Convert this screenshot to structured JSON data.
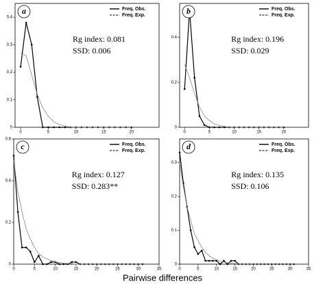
{
  "chart_data": [
    {
      "type": "line",
      "label": "a",
      "annotations": [
        "Rg index: 0.081",
        "SSD: 0.006"
      ],
      "legend": "upper right",
      "x": [
        0,
        1,
        2,
        3,
        4,
        5,
        6,
        7,
        8,
        9,
        10,
        11,
        12,
        13,
        14,
        15,
        16,
        17,
        18,
        19,
        20
      ],
      "xlim": [
        -1,
        25
      ],
      "xticks": [
        0,
        5,
        10,
        15,
        20
      ],
      "ylim": [
        0,
        0.45
      ],
      "yticks": [
        0,
        0.1,
        0.2,
        0.3,
        0.4
      ],
      "series": [
        {
          "name": "Freq. Obs.",
          "color": "#000000",
          "values": [
            0.22,
            0.38,
            0.3,
            0.11,
            0,
            0,
            0,
            0,
            0,
            0,
            0,
            0,
            0,
            0,
            0,
            0,
            0,
            0,
            0,
            0,
            0
          ]
        },
        {
          "name": "Freq. Exp.",
          "color": "#888888",
          "values": [
            0.27,
            0.26,
            0.19,
            0.12,
            0.07,
            0.04,
            0.02,
            0.01,
            0.005,
            0,
            0,
            0,
            0,
            0,
            0,
            0,
            0,
            0,
            0,
            0,
            0
          ]
        }
      ]
    },
    {
      "type": "line",
      "label": "b",
      "annotations": [
        "Rg index: 0.196",
        "SSD: 0.029"
      ],
      "legend": "upper right",
      "x": [
        0,
        1,
        2,
        3,
        4,
        5,
        6,
        7,
        8,
        9,
        10,
        11,
        12,
        13,
        14,
        15,
        16,
        17,
        18,
        19,
        20
      ],
      "xlim": [
        -1,
        25
      ],
      "xticks": [
        0,
        5,
        10,
        15,
        20
      ],
      "ylim": [
        0,
        0.55
      ],
      "yticks": [
        0,
        0.2,
        0.4
      ],
      "series": [
        {
          "name": "Freq. Obs.",
          "color": "#000000",
          "values": [
            0.17,
            0.52,
            0.22,
            0.05,
            0.01,
            0,
            0,
            0,
            0,
            0,
            0,
            0,
            0,
            0,
            0,
            0,
            0,
            0,
            0,
            0,
            0
          ]
        },
        {
          "name": "Freq. Exp.",
          "color": "#888888",
          "values": [
            0.28,
            0.22,
            0.15,
            0.09,
            0.05,
            0.03,
            0.015,
            0.008,
            0.004,
            0,
            0,
            0,
            0,
            0,
            0,
            0,
            0,
            0,
            0,
            0,
            0
          ]
        }
      ]
    },
    {
      "type": "line",
      "label": "c",
      "annotations": [
        "Rg index: 0.127",
        "SSD: 0.283**"
      ],
      "legend": "upper right",
      "x": [
        0,
        1,
        2,
        3,
        4,
        5,
        6,
        7,
        8,
        9,
        10,
        11,
        12,
        13,
        14,
        15,
        16,
        17,
        18,
        19,
        20,
        21,
        22,
        23,
        24,
        25,
        26,
        27,
        28,
        29,
        30,
        31
      ],
      "xlim": [
        0,
        35
      ],
      "xticks": [
        0,
        5,
        10,
        15,
        20,
        25,
        30,
        35
      ],
      "ylim": [
        0,
        0.6
      ],
      "yticks": [
        0,
        0.2,
        0.4,
        0.6
      ],
      "series": [
        {
          "name": "Freq. Obs.",
          "color": "#000000",
          "values": [
            0.52,
            0.25,
            0.08,
            0.08,
            0.06,
            0.01,
            0.04,
            0,
            0,
            0.01,
            0.01,
            0,
            0,
            0,
            0.01,
            0.01,
            0,
            0,
            0,
            0,
            0,
            0,
            0,
            0,
            0,
            0,
            0,
            0,
            0,
            0,
            0,
            0
          ]
        },
        {
          "name": "Freq. Exp.",
          "color": "#888888",
          "values": [
            0.5,
            0.35,
            0.25,
            0.17,
            0.12,
            0.08,
            0.05,
            0.035,
            0.025,
            0.017,
            0.012,
            0.008,
            0.005,
            0.003,
            0.002,
            0,
            0,
            0,
            0,
            0,
            0,
            0,
            0,
            0,
            0,
            0,
            0,
            0,
            0,
            0,
            0,
            0
          ]
        }
      ]
    },
    {
      "type": "line",
      "label": "d",
      "annotations": [
        "Rg index: 0.135",
        "SSD: 0.106"
      ],
      "legend": "upper right",
      "x": [
        0,
        1,
        2,
        3,
        4,
        5,
        6,
        7,
        8,
        9,
        10,
        11,
        12,
        13,
        14,
        15,
        16,
        17,
        18,
        19,
        20,
        21,
        22,
        23,
        24,
        25,
        26,
        27,
        28,
        29,
        30,
        31
      ],
      "xlim": [
        0,
        35
      ],
      "xticks": [
        0,
        5,
        10,
        15,
        20,
        25,
        30,
        35
      ],
      "ylim": [
        0,
        0.37
      ],
      "yticks": [
        0,
        0.1,
        0.2,
        0.3
      ],
      "series": [
        {
          "name": "Freq. Obs.",
          "color": "#000000",
          "values": [
            0.33,
            0.24,
            0.17,
            0.1,
            0.05,
            0.03,
            0.04,
            0.01,
            0.01,
            0.01,
            0.01,
            0,
            0.01,
            0,
            0.01,
            0.01,
            0,
            0,
            0,
            0,
            0,
            0,
            0,
            0,
            0,
            0,
            0,
            0,
            0,
            0,
            0,
            0
          ]
        },
        {
          "name": "Freq. Exp.",
          "color": "#888888",
          "values": [
            0.3,
            0.23,
            0.17,
            0.13,
            0.09,
            0.07,
            0.05,
            0.035,
            0.025,
            0.018,
            0.013,
            0.009,
            0.006,
            0.004,
            0.003,
            0.002,
            0,
            0,
            0,
            0,
            0,
            0,
            0,
            0,
            0,
            0,
            0,
            0,
            0,
            0,
            0,
            0
          ]
        }
      ]
    }
  ],
  "xlabel": "Pairwise differences"
}
